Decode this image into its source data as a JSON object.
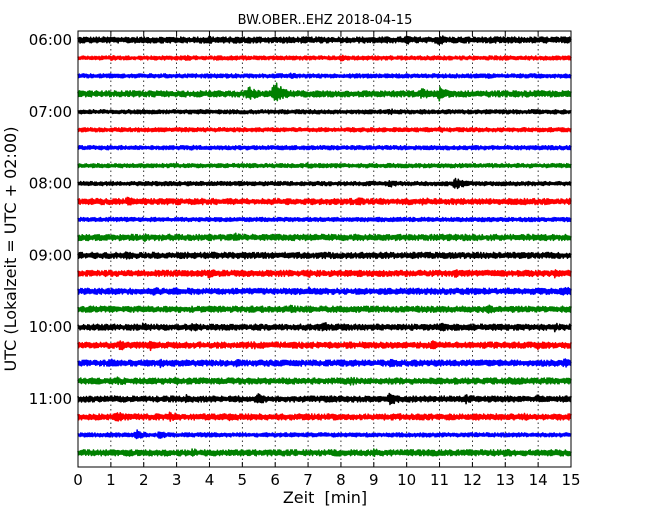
{
  "chart_data": {
    "type": "line",
    "title": "BW.OBER..EHZ 2018-04-15",
    "xlabel": "Zeit  [min]",
    "ylabel": "UTC (Lokalzeit = UTC + 02:00)",
    "xlim": [
      0,
      15
    ],
    "xticks": [
      0,
      1,
      2,
      3,
      4,
      5,
      6,
      7,
      8,
      9,
      10,
      11,
      12,
      13,
      14,
      15
    ],
    "xtick_labels": [
      "0",
      "1",
      "2",
      "3",
      "4",
      "5",
      "6",
      "7",
      "8",
      "9",
      "10",
      "11",
      "12",
      "13",
      "14",
      "15"
    ],
    "ytick_labels": [
      "06:00",
      "07:00",
      "08:00",
      "09:00",
      "10:00",
      "11:00"
    ],
    "ytick_rows": [
      0,
      4,
      8,
      12,
      16,
      20
    ],
    "grid": "vertical dotted",
    "colors": [
      "#000000",
      "#ff0000",
      "#0000ff",
      "#008000"
    ],
    "series": [
      {
        "start": "06:00",
        "color": "#000000",
        "amp": 3,
        "events": [
          [
            3.0,
            2
          ],
          [
            4.0,
            3
          ],
          [
            10.0,
            3
          ],
          [
            11.0,
            4
          ]
        ]
      },
      {
        "start": "06:15",
        "color": "#ff0000",
        "amp": 2,
        "events": [
          [
            1.0,
            2
          ],
          [
            3.3,
            2
          ],
          [
            8.0,
            2
          ]
        ]
      },
      {
        "start": "06:30",
        "color": "#0000ff",
        "amp": 2,
        "events": [
          [
            6.5,
            2
          ],
          [
            12.5,
            2
          ]
        ]
      },
      {
        "start": "06:45",
        "color": "#008000",
        "amp": 3,
        "events": [
          [
            5.2,
            6
          ],
          [
            6.0,
            11
          ],
          [
            10.5,
            5
          ],
          [
            11.0,
            6
          ]
        ]
      },
      {
        "start": "07:00",
        "color": "#000000",
        "amp": 2,
        "events": [
          [
            9.5,
            2
          ]
        ]
      },
      {
        "start": "07:15",
        "color": "#ff0000",
        "amp": 2,
        "events": [
          [
            11.0,
            2
          ]
        ]
      },
      {
        "start": "07:30",
        "color": "#0000ff",
        "amp": 2,
        "events": [
          [
            3.5,
            2
          ]
        ]
      },
      {
        "start": "07:45",
        "color": "#008000",
        "amp": 2,
        "events": [
          [
            7.0,
            2
          ]
        ]
      },
      {
        "start": "08:00",
        "color": "#000000",
        "amp": 2,
        "events": [
          [
            9.5,
            3
          ],
          [
            11.5,
            5
          ]
        ]
      },
      {
        "start": "08:15",
        "color": "#ff0000",
        "amp": 3,
        "events": [
          [
            1.5,
            3
          ],
          [
            8.5,
            3
          ],
          [
            10.5,
            3
          ]
        ]
      },
      {
        "start": "08:30",
        "color": "#0000ff",
        "amp": 2,
        "events": [
          [
            4.0,
            2
          ]
        ]
      },
      {
        "start": "08:45",
        "color": "#008000",
        "amp": 3,
        "events": [
          [
            2.0,
            3
          ],
          [
            2.8,
            3
          ],
          [
            4.8,
            3
          ]
        ]
      },
      {
        "start": "09:00",
        "color": "#000000",
        "amp": 3,
        "events": [
          [
            1.5,
            3
          ],
          [
            5.0,
            3
          ],
          [
            9.5,
            2
          ]
        ]
      },
      {
        "start": "09:15",
        "color": "#ff0000",
        "amp": 3,
        "events": [
          [
            4.0,
            4
          ],
          [
            7.0,
            3
          ],
          [
            11.5,
            3
          ],
          [
            14.5,
            3
          ]
        ]
      },
      {
        "start": "09:30",
        "color": "#0000ff",
        "amp": 3,
        "events": [
          [
            2.3,
            3
          ],
          [
            3.0,
            3
          ],
          [
            7.0,
            3
          ],
          [
            14.8,
            4
          ]
        ]
      },
      {
        "start": "09:45",
        "color": "#008000",
        "amp": 3,
        "events": [
          [
            2.0,
            3
          ],
          [
            6.5,
            3
          ],
          [
            12.5,
            3
          ]
        ]
      },
      {
        "start": "10:00",
        "color": "#000000",
        "amp": 3,
        "events": [
          [
            2.0,
            3
          ],
          [
            3.5,
            3
          ],
          [
            7.5,
            4
          ],
          [
            11.0,
            4
          ],
          [
            14.5,
            3
          ]
        ]
      },
      {
        "start": "10:15",
        "color": "#ff0000",
        "amp": 3,
        "events": [
          [
            1.3,
            4
          ],
          [
            2.2,
            4
          ],
          [
            5.3,
            3
          ],
          [
            10.8,
            3
          ],
          [
            14.0,
            3
          ]
        ]
      },
      {
        "start": "10:30",
        "color": "#0000ff",
        "amp": 3,
        "events": [
          [
            1.0,
            3
          ],
          [
            2.5,
            3
          ],
          [
            4.8,
            3
          ],
          [
            9.5,
            3
          ],
          [
            14.8,
            3
          ]
        ]
      },
      {
        "start": "10:45",
        "color": "#008000",
        "amp": 3,
        "events": [
          [
            1.2,
            3
          ],
          [
            3.0,
            3
          ],
          [
            8.3,
            3
          ],
          [
            13.0,
            3
          ]
        ]
      },
      {
        "start": "11:00",
        "color": "#000000",
        "amp": 3,
        "events": [
          [
            3.3,
            3
          ],
          [
            5.5,
            4
          ],
          [
            9.5,
            5
          ],
          [
            11.8,
            4
          ],
          [
            14.0,
            3
          ]
        ]
      },
      {
        "start": "11:15",
        "color": "#ff0000",
        "amp": 3,
        "events": [
          [
            1.2,
            4
          ],
          [
            2.8,
            4
          ],
          [
            4.5,
            3
          ],
          [
            13.5,
            3
          ]
        ]
      },
      {
        "start": "11:30",
        "color": "#0000ff",
        "amp": 2,
        "events": [
          [
            1.8,
            4
          ],
          [
            2.5,
            3
          ]
        ]
      },
      {
        "start": "11:45",
        "color": "#008000",
        "amp": 3,
        "events": [
          [
            1.5,
            3
          ],
          [
            3.5,
            3
          ],
          [
            9.0,
            3
          ],
          [
            13.0,
            3
          ]
        ]
      }
    ]
  }
}
